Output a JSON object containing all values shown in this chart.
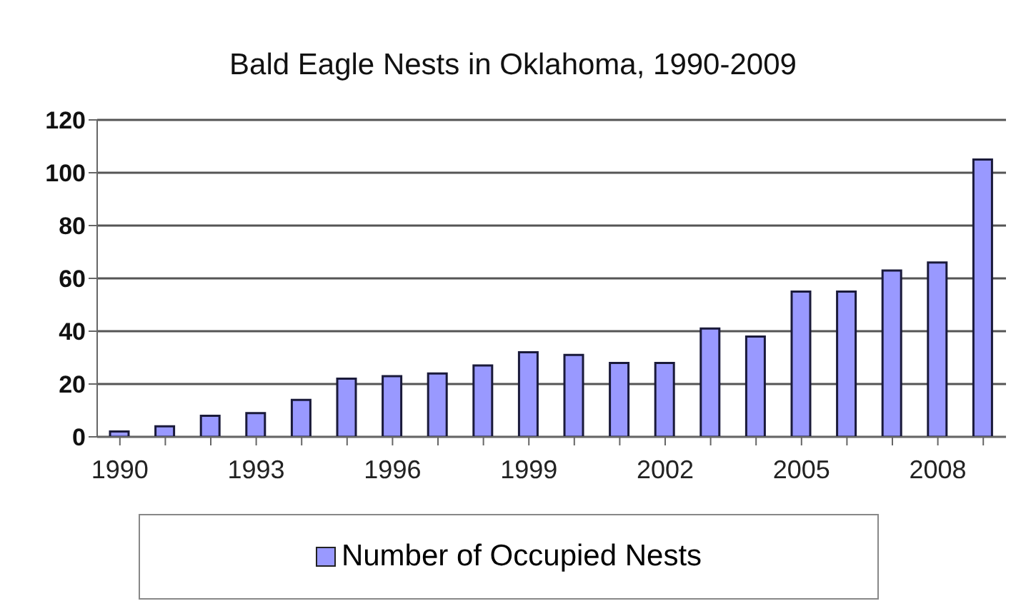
{
  "chart_data": {
    "type": "bar",
    "title": "Bald Eagle Nests in Oklahoma, 1990-2009",
    "categories": [
      "1990",
      null,
      null,
      "1993",
      null,
      null,
      "1996",
      null,
      null,
      "1999",
      null,
      null,
      "2002",
      null,
      null,
      "2005",
      null,
      null,
      "2008",
      null
    ],
    "series": [
      {
        "name": "Number of Occupied Nests",
        "color": "#9999ff",
        "values": [
          2,
          4,
          8,
          9,
          14,
          22,
          23,
          24,
          27,
          32,
          31,
          28,
          28,
          41,
          38,
          55,
          55,
          63,
          66,
          105
        ]
      }
    ],
    "ylim": [
      0,
      120
    ],
    "yticks": [
      0,
      20,
      40,
      60,
      80,
      100,
      120
    ],
    "grid": "y",
    "legend": "bottom"
  }
}
